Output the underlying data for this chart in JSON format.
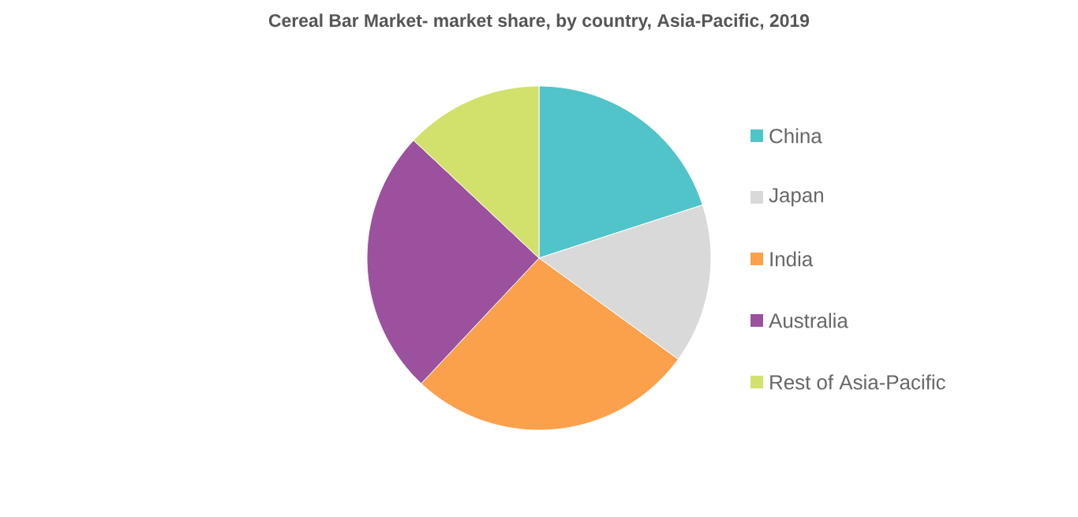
{
  "chart_data": {
    "type": "pie",
    "title": "Cereal Bar Market- market share, by country, Asia-Pacific, 2019",
    "categories": [
      "China",
      "Japan",
      "India",
      "Australia",
      "Rest of Asia-Pacific"
    ],
    "values": [
      20,
      15,
      27,
      25,
      13
    ],
    "colors": [
      "#50c4c9",
      "#d9d9d9",
      "#fba04b",
      "#9b519e",
      "#d2e16b"
    ],
    "legend": "right"
  }
}
